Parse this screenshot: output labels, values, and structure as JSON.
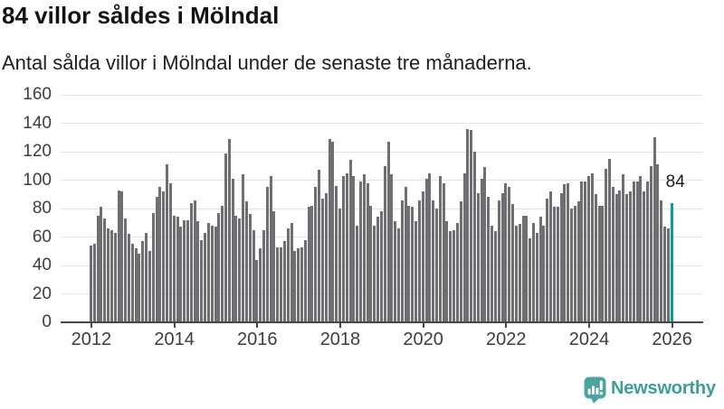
{
  "header": {
    "title": "84 villor såldes i Mölndal",
    "subtitle": "Antal sålda villor i Mölndal under de senaste tre månaderna."
  },
  "colors": {
    "bar": "#6e6e73",
    "highlight": "#00a29c",
    "grid": "#e4e4e4",
    "axis": "#474747",
    "title_text": "#141414",
    "label_text": "#3d3d3d",
    "logo": "#3f9d98"
  },
  "chart_data": {
    "type": "bar",
    "title": "84 villor såldes i Mölndal",
    "subtitle": "Antal sålda villor i Mölndal under de senaste tre månaderna.",
    "x_unit": "month",
    "x_start": "2012-01",
    "xlabel": "",
    "ylabel": "",
    "ylim": [
      0,
      160
    ],
    "y_ticks": [
      0,
      20,
      40,
      60,
      80,
      100,
      120,
      140,
      160
    ],
    "x_tick_labels": [
      "2012",
      "2014",
      "2016",
      "2018",
      "2020",
      "2022",
      "2024",
      "2026"
    ],
    "grid": "horizontal",
    "legend": "none",
    "values": [
      54,
      55,
      75,
      81,
      73,
      66,
      65,
      63,
      93,
      92,
      73,
      62,
      55,
      52,
      48,
      57,
      63,
      50,
      77,
      88,
      95,
      92,
      111,
      98,
      75,
      74,
      67,
      72,
      72,
      84,
      86,
      71,
      58,
      63,
      70,
      68,
      67,
      77,
      82,
      119,
      129,
      101,
      75,
      73,
      104,
      85,
      76,
      65,
      44,
      52,
      65,
      95,
      103,
      78,
      53,
      53,
      57,
      66,
      70,
      50,
      52,
      53,
      58,
      81,
      82,
      95,
      107,
      87,
      91,
      129,
      127,
      96,
      80,
      103,
      105,
      114,
      103,
      68,
      99,
      104,
      98,
      82,
      68,
      74,
      78,
      110,
      127,
      104,
      71,
      66,
      86,
      95,
      82,
      81,
      71,
      86,
      92,
      101,
      105,
      86,
      80,
      103,
      98,
      71,
      64,
      65,
      70,
      85,
      105,
      136,
      135,
      120,
      91,
      101,
      109,
      88,
      68,
      64,
      86,
      91,
      98,
      95,
      83,
      68,
      69,
      75,
      75,
      59,
      70,
      63,
      74,
      68,
      87,
      92,
      81,
      81,
      91,
      97,
      98,
      80,
      82,
      85,
      99,
      99,
      103,
      105,
      90,
      82,
      82,
      108,
      115,
      95,
      90,
      93,
      104,
      90,
      92,
      99,
      99,
      103,
      92,
      99,
      110,
      130,
      111,
      86,
      67,
      66,
      84
    ],
    "highlight_last": true,
    "highlight": {
      "value": 84,
      "label": "84"
    }
  },
  "logo": {
    "text": "Newsworthy"
  }
}
